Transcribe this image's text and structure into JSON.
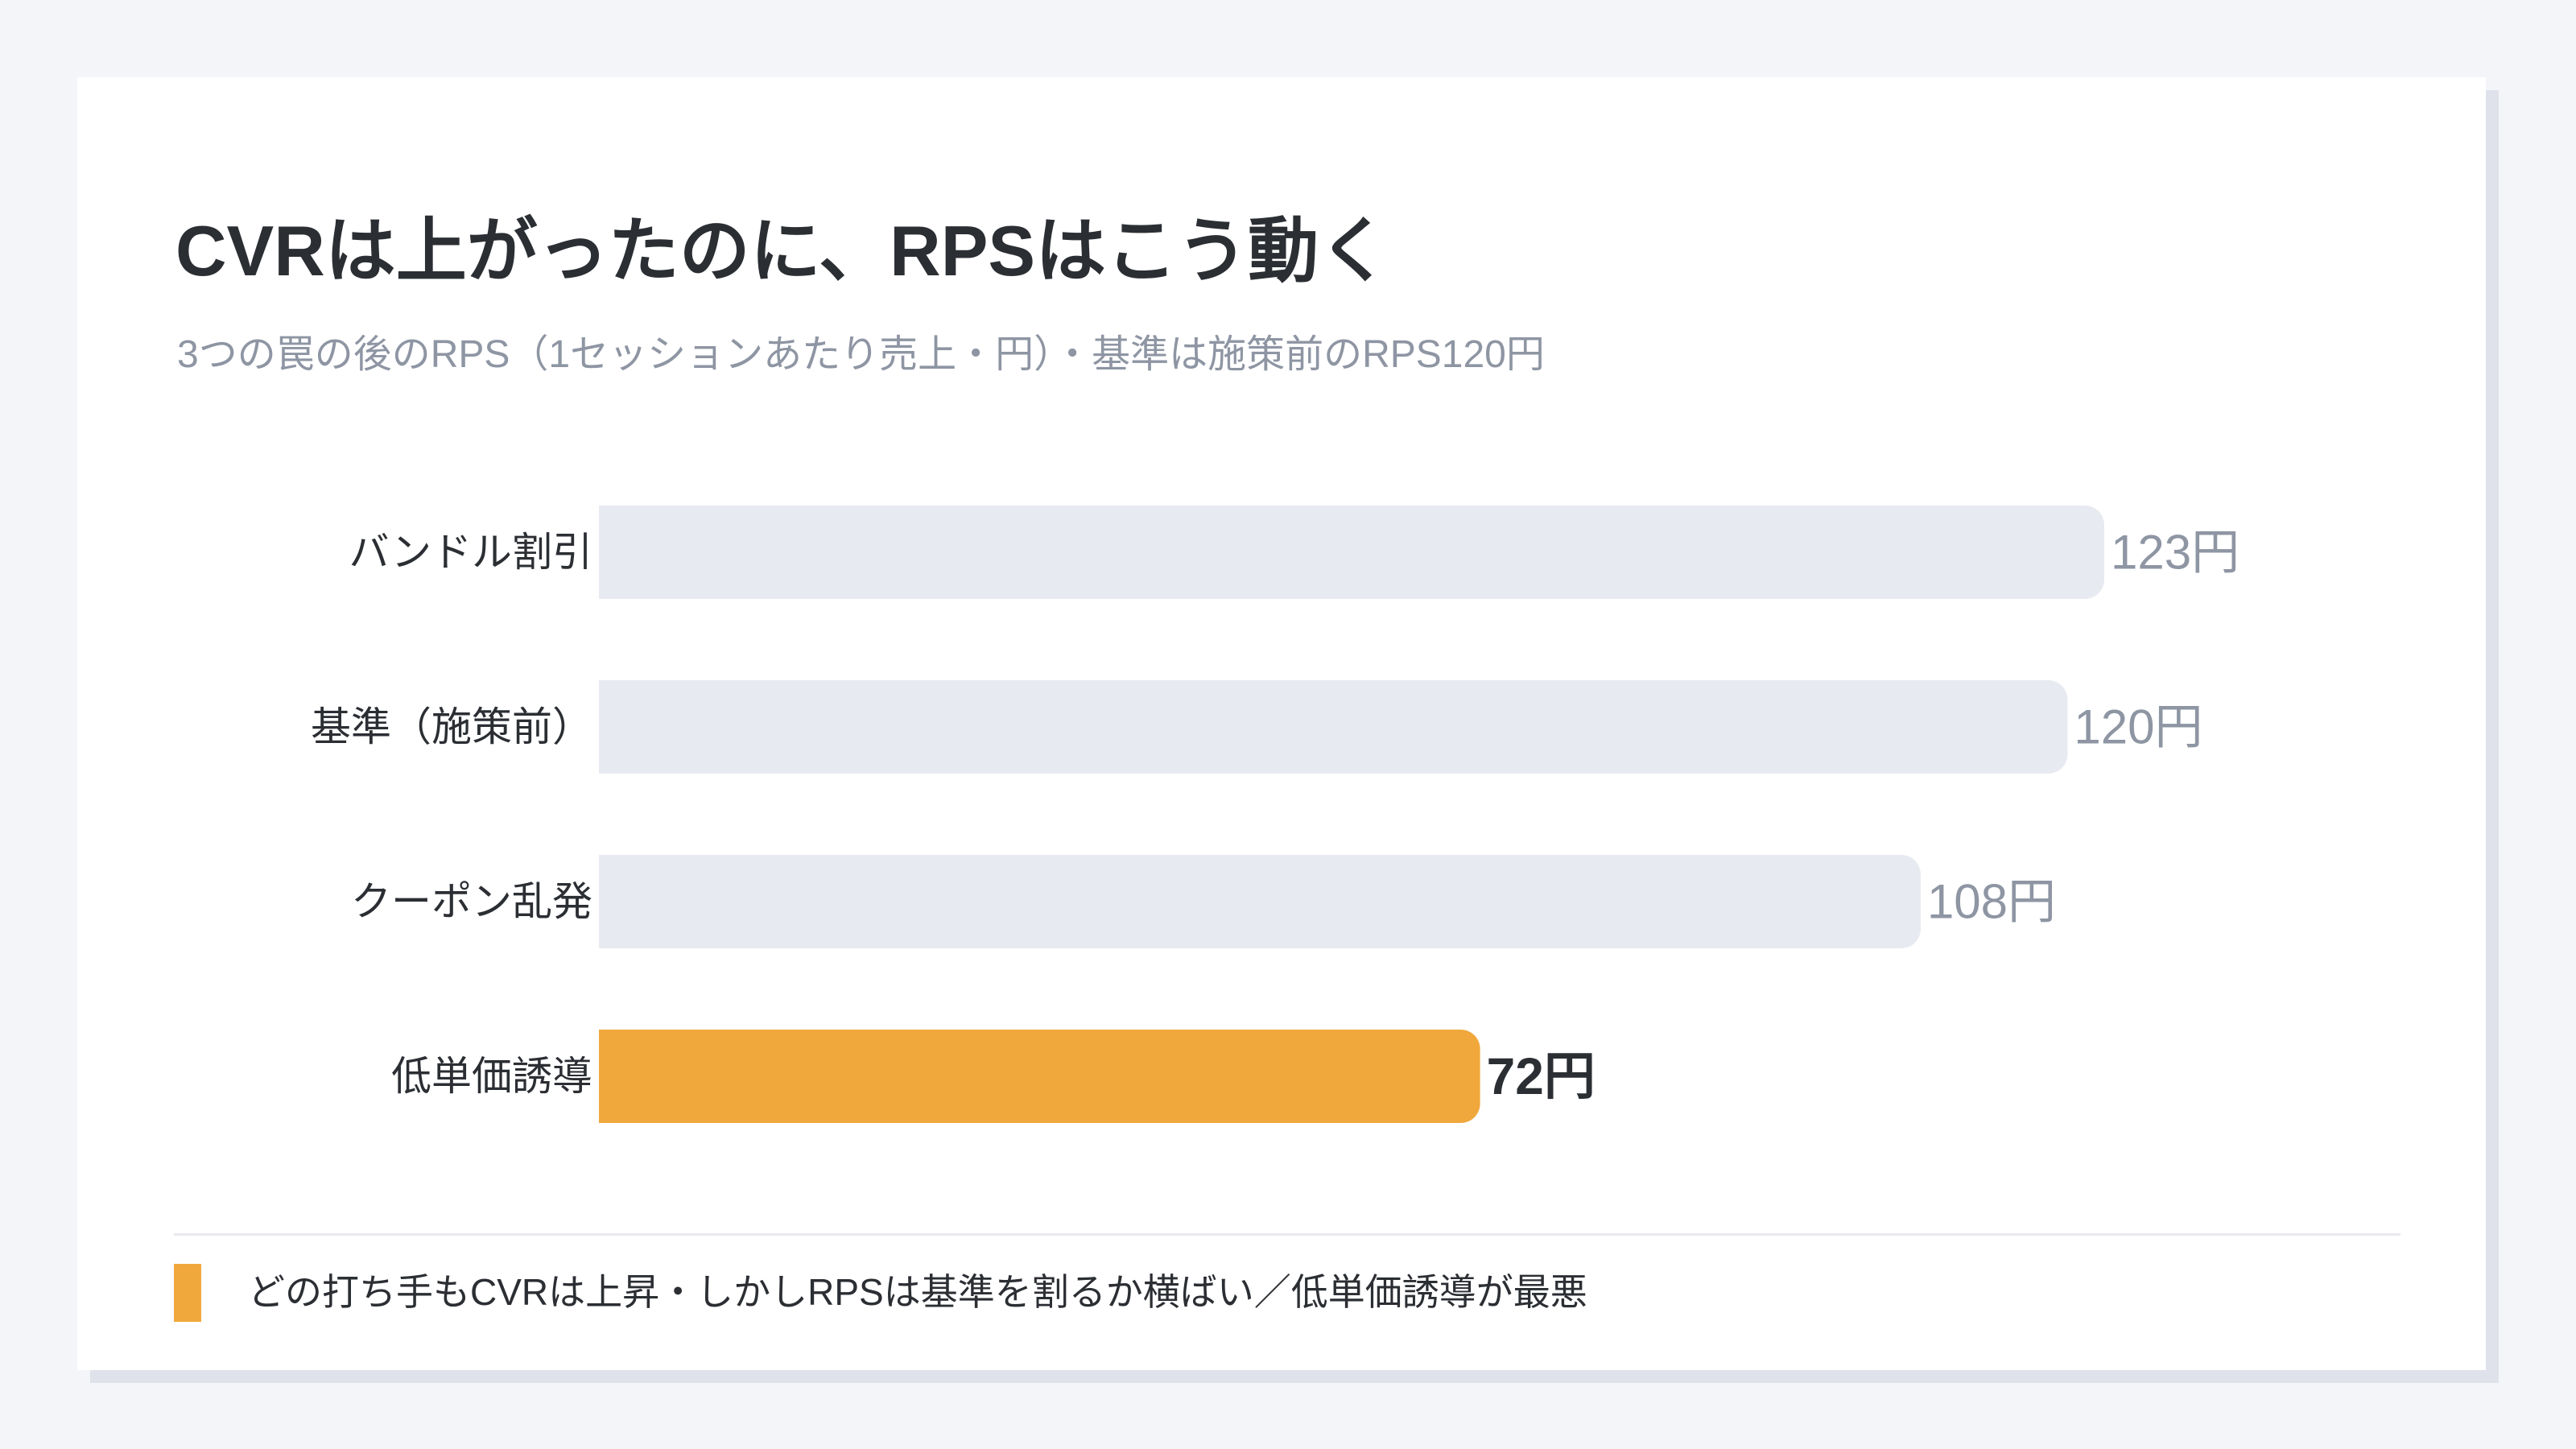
{
  "colors": {
    "background": "#f3f5f9",
    "card": "#ffffff",
    "bar_default": "#e8eaf1",
    "bar_highlight": "#f0a83c",
    "text_dark": "#2b2e33",
    "text_muted": "#8e95a3"
  },
  "chart_data": {
    "type": "bar",
    "orientation": "horizontal",
    "title": "CVRは上がったのに、RPSはこう動く",
    "subtitle": "3つの罠の後のRPS（1セッションあたり売上・円）・基準は施策前のRPS120円",
    "categories": [
      "バンドル割引",
      "基準（施策前）",
      "クーポン乱発",
      "低単価誘導"
    ],
    "values": [
      123,
      120,
      108,
      72
    ],
    "value_labels": [
      "123円",
      "120円",
      "108円",
      "72円"
    ],
    "highlight_index": 3,
    "xlim": [
      0,
      123
    ],
    "grid": false,
    "legend": {
      "text": "どの打ち手もCVRは上昇・しかしRPSは基準を割るか横ばい／低単価誘導が最悪",
      "placement": "bottom-left"
    }
  }
}
